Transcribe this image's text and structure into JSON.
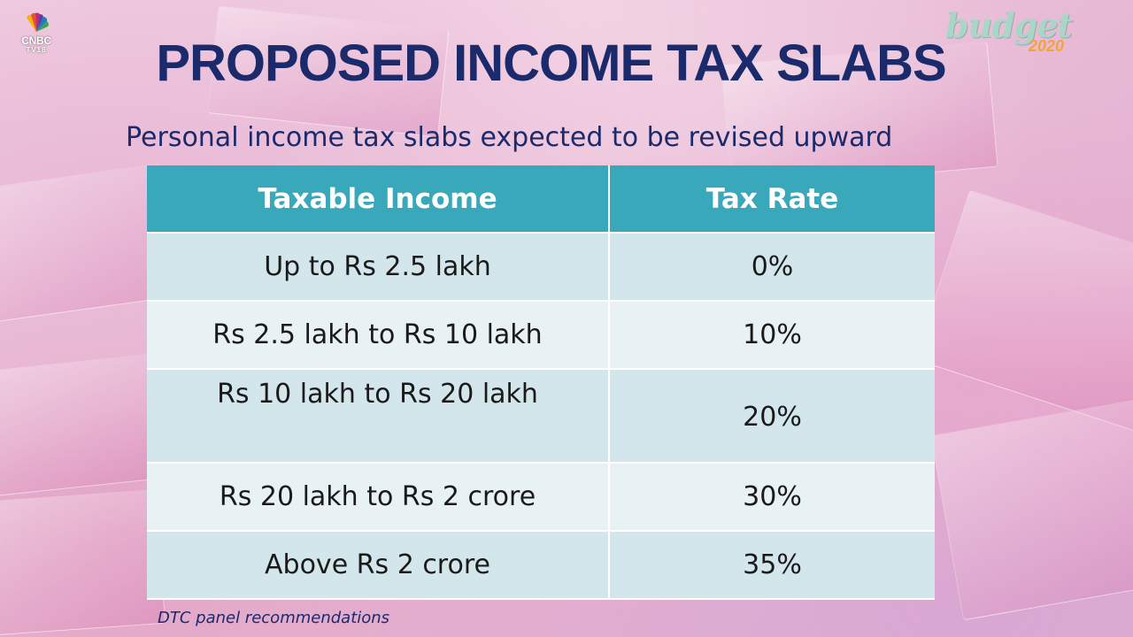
{
  "branding": {
    "channel_line1": "CNBC",
    "channel_line2": "TV18",
    "event_word": "budget",
    "event_year": "2020"
  },
  "slide": {
    "title": "PROPOSED INCOME TAX SLABS",
    "subtitle": "Personal income tax slabs expected to be revised upward",
    "footnote": "DTC panel recommendations"
  },
  "table": {
    "headers": [
      "Taxable Income",
      "Tax Rate"
    ],
    "rows": [
      {
        "income": "Up to Rs 2.5 lakh",
        "rate": "0%"
      },
      {
        "income": "Rs 2.5 lakh to Rs 10 lakh",
        "rate": "10%"
      },
      {
        "income": "Rs 10 lakh to Rs 20 lakh",
        "rate": "20%"
      },
      {
        "income": "Rs 20 lakh to Rs 2 crore",
        "rate": "30%"
      },
      {
        "income": "Above Rs 2 crore",
        "rate": "35%"
      }
    ]
  },
  "colors": {
    "header_bg": "#3aa8bb",
    "row_odd_bg": "#d3e6ec",
    "row_even_bg": "#e8f1f4",
    "title_color": "#1b2a6b"
  }
}
